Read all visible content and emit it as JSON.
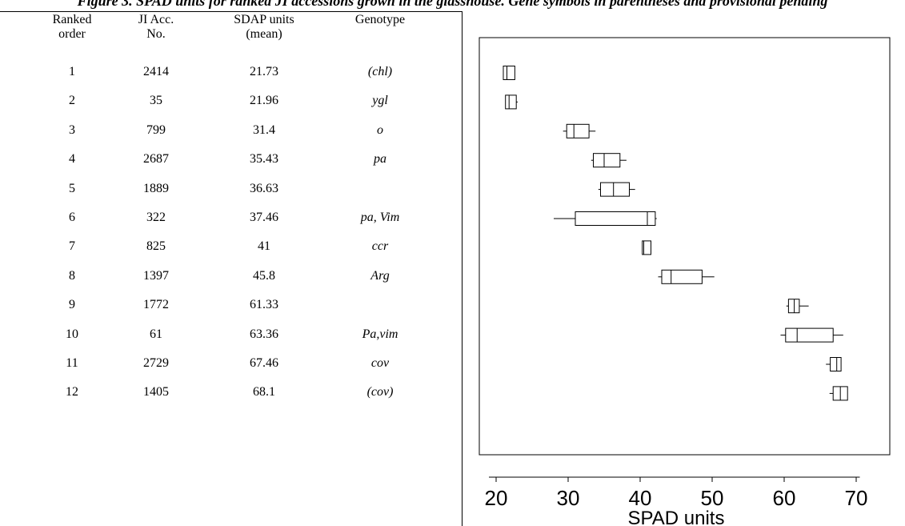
{
  "caption": "Figure 3. SPAD units for ranked JI accessions grown in the glasshouse. Gene symbols in parentheses and provisional pending",
  "table": {
    "headers": [
      "Ranked\norder",
      "JI Acc.\nNo.",
      "SDAP units\n(mean)",
      "Genotype"
    ],
    "rows": [
      {
        "rank": "1",
        "acc": "2414",
        "mean": "21.73",
        "genotype": "(chl)"
      },
      {
        "rank": "2",
        "acc": "35",
        "mean": "21.96",
        "genotype": "ygl"
      },
      {
        "rank": "3",
        "acc": "799",
        "mean": "31.4",
        "genotype": "o"
      },
      {
        "rank": "4",
        "acc": "2687",
        "mean": "35.43",
        "genotype": "pa"
      },
      {
        "rank": "5",
        "acc": "1889",
        "mean": "36.63",
        "genotype": ""
      },
      {
        "rank": "6",
        "acc": "322",
        "mean": "37.46",
        "genotype": "pa, Vim"
      },
      {
        "rank": "7",
        "acc": "825",
        "mean": "41",
        "genotype": "ccr"
      },
      {
        "rank": "8",
        "acc": "1397",
        "mean": "45.8",
        "genotype": "Arg"
      },
      {
        "rank": "9",
        "acc": "1772",
        "mean": "61.33",
        "genotype": ""
      },
      {
        "rank": "10",
        "acc": "61",
        "mean": "63.36",
        "genotype": "Pa,vim"
      },
      {
        "rank": "11",
        "acc": "2729",
        "mean": "67.46",
        "genotype": "cov"
      },
      {
        "rank": "12",
        "acc": "1405",
        "mean": "68.1",
        "genotype": "(cov)"
      }
    ]
  },
  "chart_data": {
    "type": "boxplot",
    "xlabel": "SPAD units",
    "xlim": [
      19,
      70.5
    ],
    "xticks": [
      20,
      30,
      40,
      50,
      60,
      70
    ],
    "categories": [
      "1",
      "2",
      "3",
      "4",
      "5",
      "6",
      "7",
      "8",
      "9",
      "10",
      "11",
      "12"
    ],
    "boxes": [
      {
        "min": 21.0,
        "q1": 21.0,
        "median": 21.5,
        "q3": 22.6,
        "max": 22.6
      },
      {
        "min": 21.3,
        "q1": 21.3,
        "median": 21.8,
        "q3": 22.8,
        "max": 23.0
      },
      {
        "min": 29.3,
        "q1": 29.8,
        "median": 30.8,
        "q3": 32.9,
        "max": 33.8
      },
      {
        "min": 33.2,
        "q1": 33.5,
        "median": 35.0,
        "q3": 37.2,
        "max": 38.1
      },
      {
        "min": 34.2,
        "q1": 34.5,
        "median": 36.3,
        "q3": 38.5,
        "max": 39.3
      },
      {
        "min": 28.0,
        "q1": 31.0,
        "median": 41.0,
        "q3": 42.1,
        "max": 42.3
      },
      {
        "min": 40.3,
        "q1": 40.3,
        "median": 40.5,
        "q3": 41.5,
        "max": 41.5
      },
      {
        "min": 42.5,
        "q1": 43.0,
        "median": 44.3,
        "q3": 48.6,
        "max": 50.3
      },
      {
        "min": 60.3,
        "q1": 60.6,
        "median": 61.4,
        "q3": 62.1,
        "max": 63.4
      },
      {
        "min": 59.5,
        "q1": 60.2,
        "median": 61.8,
        "q3": 66.8,
        "max": 68.2
      },
      {
        "min": 65.8,
        "q1": 66.4,
        "median": 67.3,
        "q3": 67.9,
        "max": 67.9
      },
      {
        "min": 66.3,
        "q1": 66.8,
        "median": 67.8,
        "q3": 68.8,
        "max": 68.8
      }
    ]
  }
}
